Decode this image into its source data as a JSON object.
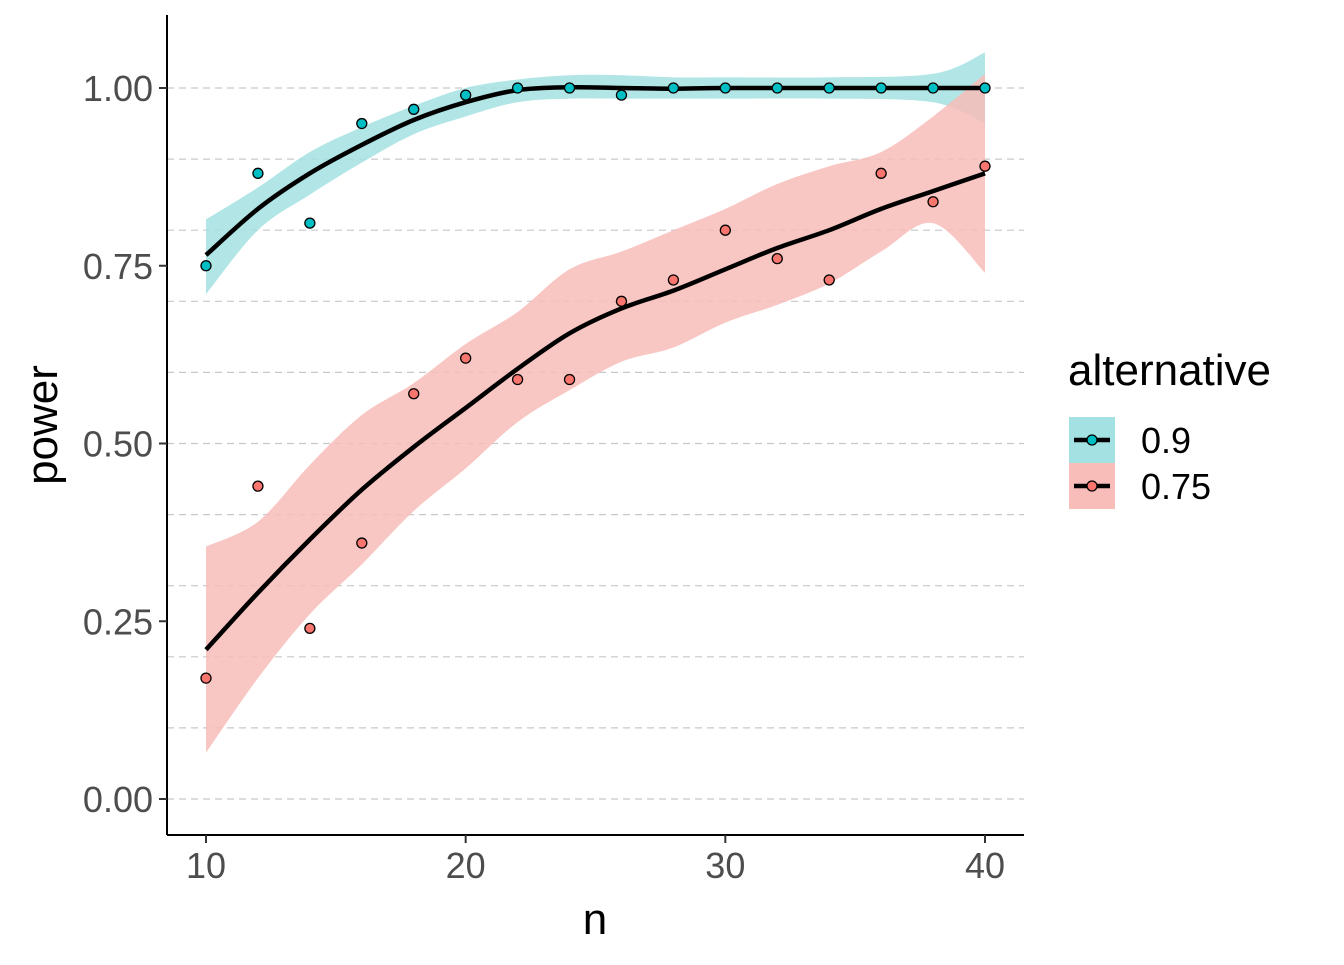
{
  "chart_data": {
    "type": "scatter",
    "title": "",
    "xlabel": "n",
    "ylabel": "power",
    "xlim": [
      8.5,
      41.5
    ],
    "ylim": [
      -0.05,
      1.1
    ],
    "x_ticks": [
      10,
      20,
      30,
      40
    ],
    "x_tick_labels": [
      "10",
      "20",
      "30",
      "40"
    ],
    "y_ticks": [
      0,
      0.25,
      0.5,
      0.75,
      1.0
    ],
    "y_tick_labels": [
      "0.00",
      "0.25",
      "0.50",
      "0.75",
      "1.00"
    ],
    "grid_y": [
      0,
      0.1,
      0.2,
      0.3,
      0.4,
      0.5,
      0.6,
      0.7,
      0.8,
      0.9,
      1.0
    ],
    "legend": {
      "title": "alternative",
      "position": "right",
      "entries": [
        "0.9",
        "0.75"
      ]
    },
    "series": [
      {
        "name": "0.9",
        "color": "#00BFC4",
        "ribbon_color": "#A3E1E2",
        "x": [
          10,
          12,
          14,
          16,
          18,
          20,
          22,
          24,
          26,
          28,
          30,
          32,
          34,
          36,
          38,
          40
        ],
        "y": [
          0.75,
          0.88,
          0.81,
          0.95,
          0.97,
          0.99,
          1.0,
          1.0,
          0.99,
          1.0,
          1.0,
          1.0,
          1.0,
          1.0,
          1.0,
          1.0
        ],
        "smooth": {
          "x": [
            10,
            12,
            14,
            16,
            18,
            20,
            22,
            24,
            26,
            28,
            30,
            34,
            38,
            40
          ],
          "y": [
            0.765,
            0.83,
            0.88,
            0.92,
            0.955,
            0.98,
            0.997,
            1.001,
            1.0,
            0.999,
            1.0,
            1.0,
            1.0,
            1.0
          ],
          "lower": [
            0.71,
            0.8,
            0.85,
            0.895,
            0.935,
            0.96,
            0.98,
            0.985,
            0.985,
            0.985,
            0.985,
            0.985,
            0.98,
            0.95
          ],
          "upper": [
            0.815,
            0.86,
            0.91,
            0.945,
            0.975,
            1.0,
            1.012,
            1.018,
            1.018,
            1.015,
            1.015,
            1.015,
            1.02,
            1.05
          ]
        }
      },
      {
        "name": "0.75",
        "color": "#F8766D",
        "ribbon_color": "#F8BDB9",
        "x": [
          10,
          12,
          14,
          16,
          18,
          20,
          22,
          24,
          26,
          28,
          30,
          32,
          34,
          36,
          38,
          40
        ],
        "y": [
          0.17,
          0.44,
          0.24,
          0.36,
          0.57,
          0.62,
          0.59,
          0.59,
          0.7,
          0.73,
          0.8,
          0.76,
          0.73,
          0.88,
          0.84,
          0.89
        ],
        "smooth": {
          "x": [
            10,
            12,
            14,
            16,
            18,
            20,
            22,
            24,
            26,
            28,
            30,
            32,
            34,
            36,
            38,
            40
          ],
          "y": [
            0.21,
            0.29,
            0.365,
            0.435,
            0.495,
            0.55,
            0.605,
            0.655,
            0.69,
            0.715,
            0.745,
            0.775,
            0.8,
            0.83,
            0.855,
            0.88
          ],
          "lower": [
            0.065,
            0.17,
            0.26,
            0.33,
            0.405,
            0.465,
            0.53,
            0.575,
            0.615,
            0.635,
            0.67,
            0.695,
            0.725,
            0.77,
            0.81,
            0.74
          ],
          "upper": [
            0.355,
            0.39,
            0.47,
            0.54,
            0.585,
            0.64,
            0.685,
            0.745,
            0.77,
            0.8,
            0.83,
            0.865,
            0.89,
            0.91,
            0.96,
            1.02
          ]
        }
      }
    ]
  }
}
